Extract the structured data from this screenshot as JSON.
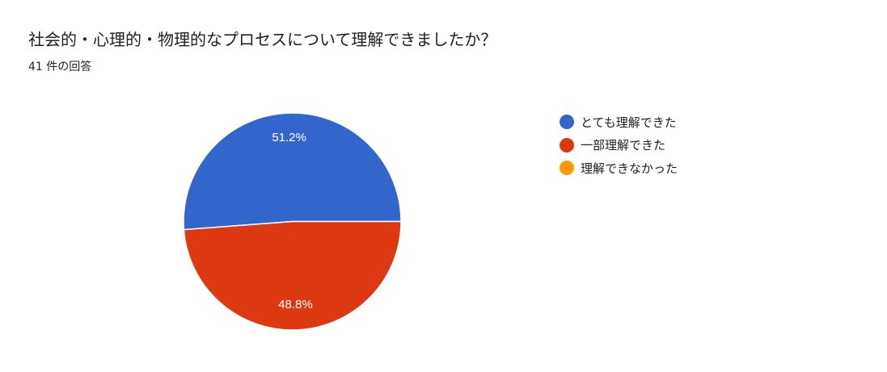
{
  "title": "社会的・心理的・物理的なプロセスについて理解できましたか？",
  "subtitle": "41 件の回答",
  "chart_data": {
    "type": "pie",
    "title": "社会的・心理的・物理的なプロセスについて理解できましたか？",
    "categories": [
      "とても理解できた",
      "一部理解できた",
      "理解できなかった"
    ],
    "values": [
      51.2,
      48.8,
      0
    ],
    "labels": [
      "51.2%",
      "48.8%",
      ""
    ],
    "colors": [
      "#3366cc",
      "#dc3912",
      "#ff9900"
    ],
    "legend_position": "right"
  }
}
